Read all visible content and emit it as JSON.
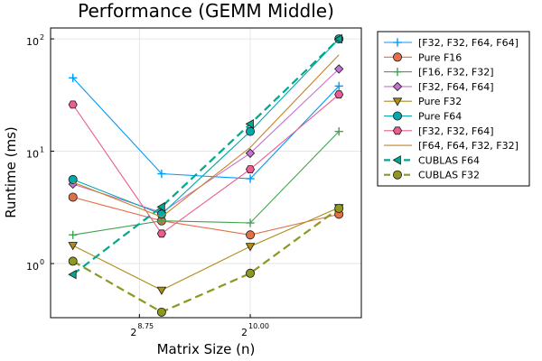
{
  "chart_data": {
    "type": "line",
    "title": "Performance (GEMM Middle)",
    "xlabel": "Matrix Size (n)",
    "ylabel": "Runtime (ms)",
    "x_scale": "log2",
    "y_scale": "log10",
    "x": [
      256,
      512,
      1024,
      2048
    ],
    "xlim": [
      215,
      2440
    ],
    "ylim": [
      0.33,
      125
    ],
    "x_ticks": [
      {
        "base": "2",
        "exp": "8.75",
        "value": 430.5
      },
      {
        "base": "2",
        "exp": "10.00",
        "value": 1024
      }
    ],
    "y_ticks": [
      {
        "base": "10",
        "exp": "0",
        "value": 1
      },
      {
        "base": "10",
        "exp": "1",
        "value": 10
      },
      {
        "base": "10",
        "exp": "2",
        "value": 100
      }
    ],
    "grid": true,
    "legend_position": "outside-top-right",
    "series": [
      {
        "name": "[F32, F32, F64, F64]",
        "color": "#009AFA",
        "marker": "plus",
        "dash": false,
        "values": [
          45,
          6.3,
          5.7,
          38
        ]
      },
      {
        "name": "Pure F16",
        "color": "#E36F47",
        "marker": "circle",
        "dash": false,
        "values": [
          3.9,
          2.4,
          1.8,
          2.75
        ]
      },
      {
        "name": "[F16, F32, F32]",
        "color": "#3EA44E",
        "marker": "plus",
        "dash": false,
        "values": [
          1.8,
          2.4,
          2.3,
          15
        ]
      },
      {
        "name": "[F32, F64, F64]",
        "color": "#C371D2",
        "marker": "diamond",
        "dash": false,
        "values": [
          5.1,
          2.85,
          9.6,
          54
        ]
      },
      {
        "name": "Pure F32",
        "color": "#AC8E18",
        "marker": "triangle-down",
        "dash": false,
        "values": [
          1.45,
          0.58,
          1.42,
          3.15
        ]
      },
      {
        "name": "Pure F64",
        "color": "#00A9AD",
        "marker": "circle",
        "dash": false,
        "values": [
          5.6,
          2.75,
          15,
          100
        ]
      },
      {
        "name": "[F32, F32, F64]",
        "color": "#ED5D92",
        "marker": "hexagon",
        "dash": false,
        "values": [
          26,
          1.85,
          6.9,
          32
        ]
      },
      {
        "name": "[F64, F64, F32, F32]",
        "color": "#C68225",
        "marker": "none",
        "dash": false,
        "values": [
          5.3,
          2.6,
          10.8,
          72
        ]
      },
      {
        "name": "CUBLAS F64",
        "color": "#00A98D",
        "marker": "triangle-left",
        "dash": true,
        "values": [
          0.8,
          3.2,
          17.5,
          100
        ]
      },
      {
        "name": "CUBLAS F32",
        "color": "#8E971E",
        "marker": "circle",
        "dash": true,
        "values": [
          1.05,
          0.37,
          0.82,
          3.1
        ]
      }
    ]
  }
}
